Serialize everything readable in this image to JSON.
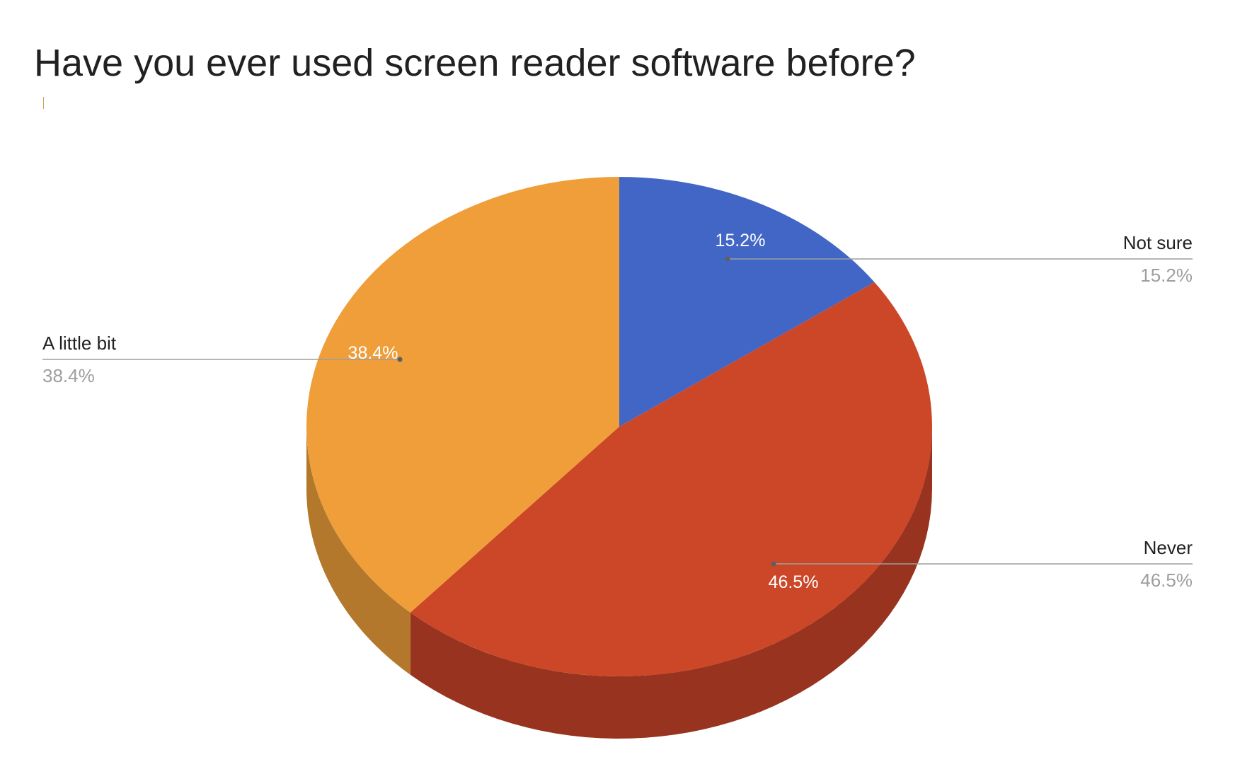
{
  "title": "Have you ever used screen reader software before?",
  "colors": {
    "slice_fill": [
      "#4166c5",
      "#cc4628",
      "#ef9e39"
    ],
    "slice_side": [
      "#2f4d99",
      "#98331f",
      "#b3782b"
    ],
    "label_dark": "#212121",
    "label_muted": "#9e9e9e",
    "inner_label": "#ffffff",
    "leader_line": "#9e9e9e"
  },
  "chart_data": {
    "type": "pie",
    "style": "3d",
    "title": "Have you ever used screen reader software before?",
    "categories": [
      "Not sure",
      "Never",
      "A little bit"
    ],
    "values": [
      15.2,
      46.5,
      38.4
    ],
    "unit": "%",
    "labels": [
      {
        "name": "Not sure",
        "value_text": "15.2%",
        "side": "right"
      },
      {
        "name": "Never",
        "value_text": "46.5%",
        "side": "right"
      },
      {
        "name": "A little bit",
        "value_text": "38.4%",
        "side": "left"
      }
    ],
    "legend": "none"
  }
}
